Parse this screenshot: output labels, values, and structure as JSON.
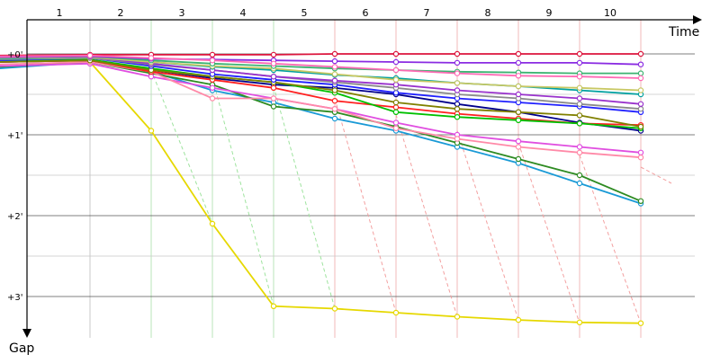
{
  "chart_data": {
    "type": "line",
    "xlabel": "Time",
    "ylabel": "Gap",
    "x_ticks": [
      "1",
      "2",
      "3",
      "4",
      "5",
      "6",
      "7",
      "8",
      "9",
      "10"
    ],
    "y_ticks": [
      "+0'",
      "+1'",
      "+2'",
      "+3'"
    ],
    "ylim": [
      0,
      3.45
    ],
    "xlim": [
      0.5,
      11.3
    ],
    "grid": true,
    "legend": "none",
    "guide_lines": [
      {
        "x": 2,
        "color": "#c8c8c8"
      },
      {
        "x": 3,
        "color": "#b8e6b8"
      },
      {
        "x": 4,
        "color": "#b8e6b8"
      },
      {
        "x": 5,
        "color": "#b8e6b8"
      },
      {
        "x": 6,
        "color": "#f2b8b8"
      },
      {
        "x": 7,
        "color": "#f2b8b8"
      },
      {
        "x": 8,
        "color": "#f2b8b8"
      },
      {
        "x": 9,
        "color": "#f2b8b8"
      },
      {
        "x": 10,
        "color": "#f2b8b8"
      },
      {
        "x": 11,
        "color": "#f2b8b8"
      }
    ],
    "dashed_links": [
      {
        "color": "#9ee39e",
        "points": [
          [
            3,
            0.2
          ],
          [
            4,
            2.1
          ]
        ]
      },
      {
        "color": "#9ee39e",
        "points": [
          [
            4,
            0.3
          ],
          [
            5,
            3.12
          ]
        ]
      },
      {
        "color": "#9ee39e",
        "points": [
          [
            5,
            0.4
          ],
          [
            6,
            3.15
          ]
        ]
      },
      {
        "color": "#f3a0a0",
        "points": [
          [
            6,
            0.55
          ],
          [
            7,
            3.2
          ]
        ]
      },
      {
        "color": "#f3a0a0",
        "points": [
          [
            7,
            0.75
          ],
          [
            8,
            3.25
          ]
        ]
      },
      {
        "color": "#f3a0a0",
        "points": [
          [
            8,
            0.95
          ],
          [
            9,
            3.29
          ]
        ]
      },
      {
        "color": "#f3a0a0",
        "points": [
          [
            9,
            1.1
          ],
          [
            10,
            3.33
          ]
        ]
      },
      {
        "color": "#f3a0a0",
        "points": [
          [
            10,
            1.25
          ],
          [
            11,
            3.33
          ]
        ]
      },
      {
        "color": "#f3a0a0",
        "points": [
          [
            11,
            1.4
          ],
          [
            11.5,
            1.6
          ]
        ]
      }
    ],
    "series": [
      {
        "color": "#e6d800",
        "values": [
          0.05,
          0.1,
          0.95,
          2.1,
          3.12,
          3.15,
          3.2,
          3.25,
          3.29,
          3.32,
          3.33
        ]
      },
      {
        "color": "#1a9ad6",
        "values": [
          0.18,
          0.1,
          0.22,
          0.45,
          0.6,
          0.8,
          0.95,
          1.15,
          1.35,
          1.6,
          1.85
        ]
      },
      {
        "color": "#2e8b22",
        "values": [
          0.16,
          0.1,
          0.24,
          0.38,
          0.65,
          0.72,
          0.9,
          1.1,
          1.3,
          1.5,
          1.82
        ]
      },
      {
        "color": "#e04ee0",
        "values": [
          0.15,
          0.12,
          0.28,
          0.42,
          0.55,
          0.68,
          0.85,
          1.0,
          1.08,
          1.15,
          1.22
        ]
      },
      {
        "color": "#ff8aa8",
        "values": [
          0.13,
          0.1,
          0.22,
          0.55,
          0.55,
          0.68,
          0.92,
          1.05,
          1.15,
          1.22,
          1.28
        ]
      },
      {
        "color": "#00008b",
        "values": [
          0.1,
          0.08,
          0.2,
          0.3,
          0.38,
          0.42,
          0.5,
          0.62,
          0.72,
          0.85,
          0.95
        ]
      },
      {
        "color": "#ff2020",
        "values": [
          0.1,
          0.08,
          0.22,
          0.32,
          0.42,
          0.58,
          0.66,
          0.74,
          0.8,
          0.86,
          0.88
        ]
      },
      {
        "color": "#00c000",
        "values": [
          0.09,
          0.07,
          0.18,
          0.28,
          0.35,
          0.48,
          0.72,
          0.78,
          0.82,
          0.86,
          0.92
        ]
      },
      {
        "color": "#808000",
        "values": [
          0.1,
          0.08,
          0.2,
          0.28,
          0.35,
          0.45,
          0.6,
          0.68,
          0.72,
          0.76,
          0.9
        ]
      },
      {
        "color": "#2020ff",
        "values": [
          0.08,
          0.05,
          0.15,
          0.25,
          0.32,
          0.38,
          0.48,
          0.55,
          0.6,
          0.65,
          0.72
        ]
      },
      {
        "color": "#8b8b8b",
        "values": [
          0.07,
          0.05,
          0.13,
          0.2,
          0.28,
          0.35,
          0.42,
          0.5,
          0.55,
          0.62,
          0.68
        ]
      },
      {
        "color": "#9932cc",
        "values": [
          0.06,
          0.04,
          0.12,
          0.2,
          0.28,
          0.33,
          0.38,
          0.45,
          0.5,
          0.55,
          0.62
        ]
      },
      {
        "color": "#00a0a0",
        "values": [
          0.06,
          0.04,
          0.1,
          0.16,
          0.2,
          0.26,
          0.3,
          0.36,
          0.4,
          0.45,
          0.5
        ]
      },
      {
        "color": "#c8c864",
        "values": [
          0.05,
          0.04,
          0.1,
          0.15,
          0.18,
          0.25,
          0.32,
          0.36,
          0.4,
          0.42,
          0.45
        ]
      },
      {
        "color": "#3cb371",
        "values": [
          0.04,
          0.03,
          0.08,
          0.12,
          0.15,
          0.18,
          0.2,
          0.22,
          0.23,
          0.24,
          0.24
        ]
      },
      {
        "color": "#8a2be2",
        "values": [
          0.04,
          0.03,
          0.06,
          0.07,
          0.08,
          0.09,
          0.1,
          0.11,
          0.11,
          0.11,
          0.13
        ]
      },
      {
        "color": "#dc143c",
        "values": [
          0.02,
          0.01,
          0.01,
          0.01,
          0.01,
          0.0,
          0.0,
          0.0,
          0.0,
          0.0,
          0.0
        ]
      },
      {
        "color": "#ff69b4",
        "values": [
          0.03,
          0.02,
          0.05,
          0.08,
          0.12,
          0.16,
          0.2,
          0.24,
          0.27,
          0.28,
          0.3
        ]
      }
    ]
  }
}
